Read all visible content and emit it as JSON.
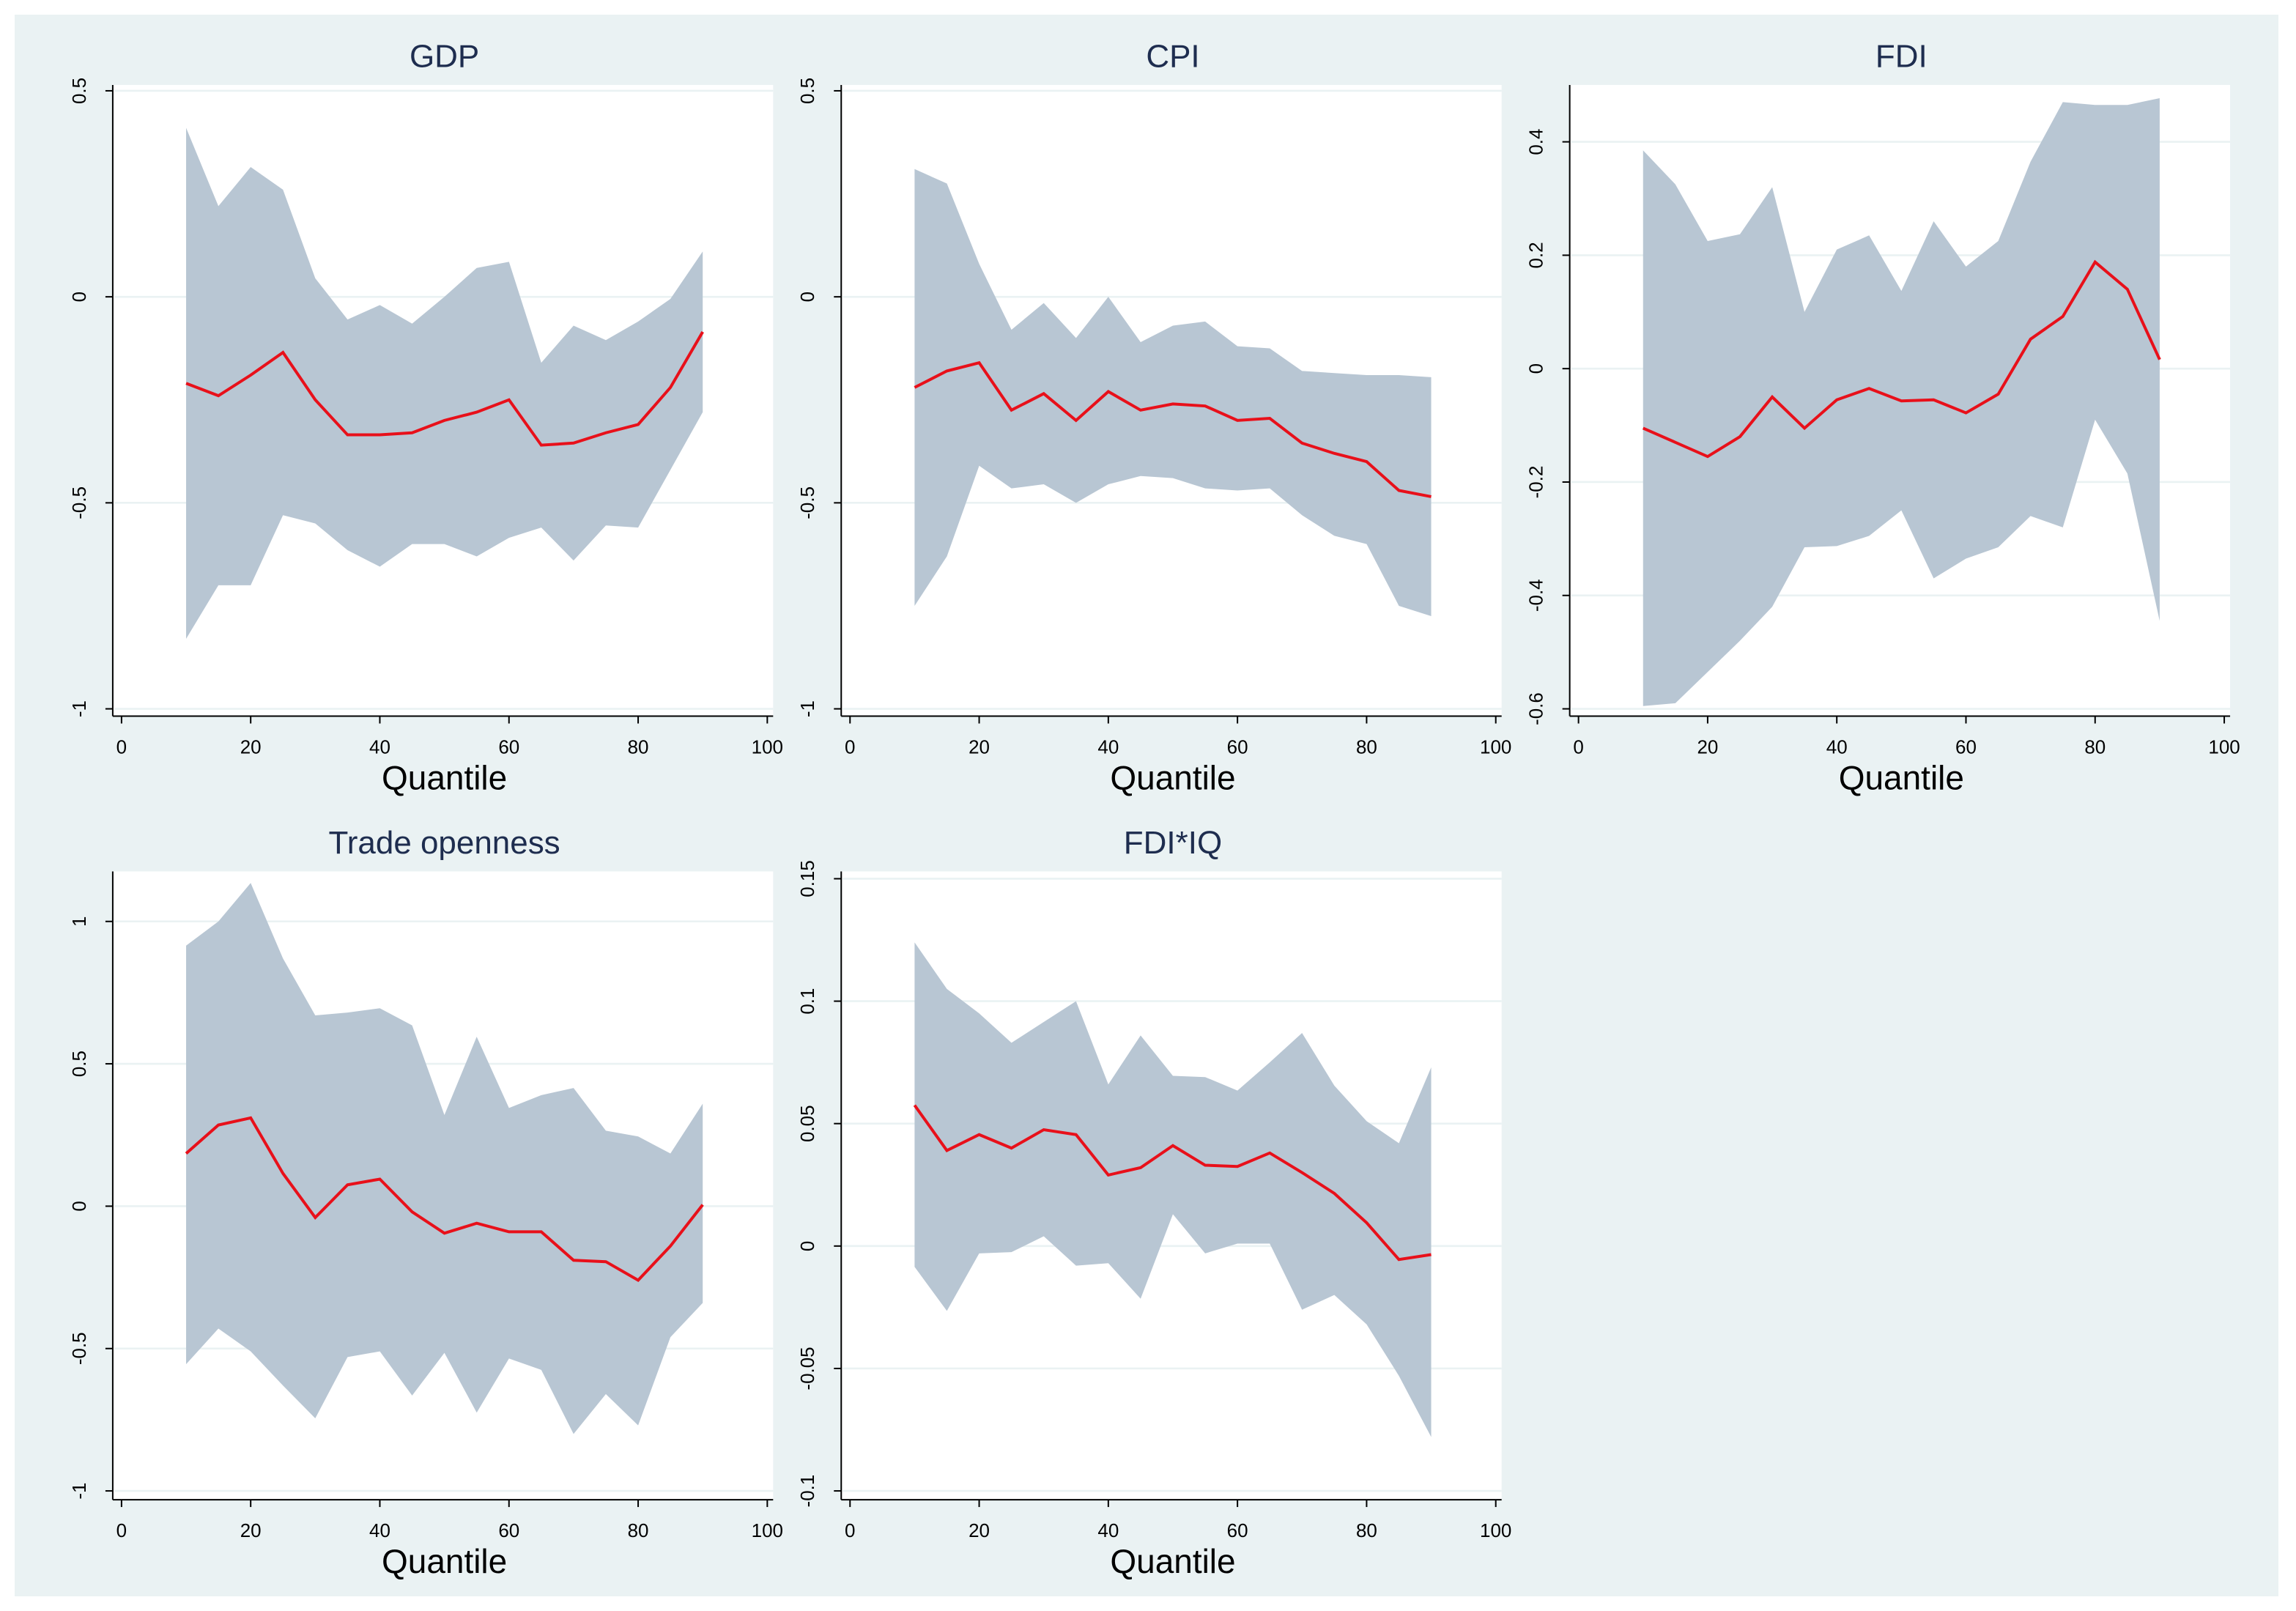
{
  "chart_data": [
    {
      "type": "line",
      "title": "GDP",
      "xlabel": "Quantile",
      "x": [
        10,
        15,
        20,
        25,
        30,
        35,
        40,
        45,
        50,
        55,
        60,
        65,
        70,
        75,
        80,
        85,
        90
      ],
      "values": [
        -0.21,
        -0.24,
        -0.19,
        -0.135,
        -0.25,
        -0.335,
        -0.335,
        -0.33,
        -0.3,
        -0.28,
        -0.25,
        -0.36,
        -0.355,
        -0.33,
        -0.31,
        -0.22,
        -0.085
      ],
      "color": "#e8101a",
      "band": {
        "color": "#b8c6d3",
        "upper": [
          0.41,
          0.22,
          0.315,
          0.26,
          0.045,
          -0.055,
          -0.02,
          -0.065,
          0,
          0.07,
          0.085,
          -0.16,
          -0.07,
          -0.105,
          -0.06,
          -0.005,
          0.11
        ],
        "lower": [
          -0.83,
          -0.7,
          -0.7,
          -0.53,
          -0.55,
          -0.615,
          -0.655,
          -0.6,
          -0.6,
          -0.63,
          -0.585,
          -0.56,
          -0.64,
          -0.555,
          -0.56,
          -0.42,
          -0.28
        ]
      },
      "xlim": [
        0,
        100
      ],
      "xticks": [
        0,
        20,
        40,
        60,
        80,
        100
      ],
      "ylim": [
        -1,
        0.5
      ],
      "yticks": [
        -1,
        -0.5,
        0,
        0.5
      ],
      "grid": true
    },
    {
      "type": "line",
      "title": "CPI",
      "xlabel": "Quantile",
      "x": [
        10,
        15,
        20,
        25,
        30,
        35,
        40,
        45,
        50,
        55,
        60,
        65,
        70,
        75,
        80,
        85,
        90
      ],
      "values": [
        -0.22,
        -0.18,
        -0.16,
        -0.275,
        -0.235,
        -0.3,
        -0.23,
        -0.275,
        -0.26,
        -0.265,
        -0.3,
        -0.295,
        -0.355,
        -0.38,
        -0.4,
        -0.47,
        -0.485
      ],
      "color": "#e8101a",
      "band": {
        "color": "#b8c6d3",
        "upper": [
          0.31,
          0.275,
          0.08,
          -0.08,
          -0.015,
          -0.1,
          0,
          -0.11,
          -0.07,
          -0.06,
          -0.12,
          -0.125,
          -0.18,
          -0.185,
          -0.19,
          -0.19,
          -0.195
        ],
        "lower": [
          -0.75,
          -0.63,
          -0.41,
          -0.465,
          -0.455,
          -0.5,
          -0.455,
          -0.435,
          -0.44,
          -0.465,
          -0.47,
          -0.465,
          -0.53,
          -0.58,
          -0.6,
          -0.75,
          -0.775
        ]
      },
      "xlim": [
        0,
        100
      ],
      "xticks": [
        0,
        20,
        40,
        60,
        80,
        100
      ],
      "ylim": [
        -1,
        0.5
      ],
      "yticks": [
        -1,
        -0.5,
        0,
        0.5
      ],
      "grid": true
    },
    {
      "type": "line",
      "title": "FDI",
      "xlabel": "Quantile",
      "x": [
        10,
        15,
        20,
        25,
        30,
        35,
        40,
        45,
        50,
        55,
        60,
        65,
        70,
        75,
        80,
        85,
        90
      ],
      "values": [
        -0.105,
        -0.13,
        -0.155,
        -0.12,
        -0.05,
        -0.105,
        -0.055,
        -0.035,
        -0.057,
        -0.055,
        -0.078,
        -0.045,
        0.052,
        0.092,
        0.188,
        0.14,
        0.016
      ],
      "color": "#e8101a",
      "band": {
        "color": "#b8c6d3",
        "upper": [
          0.385,
          0.325,
          0.225,
          0.237,
          0.32,
          0.1,
          0.21,
          0.235,
          0.137,
          0.26,
          0.18,
          0.225,
          0.365,
          0.47,
          0.465,
          0.465,
          0.477
        ],
        "lower": [
          -0.595,
          -0.59,
          -0.535,
          -0.48,
          -0.42,
          -0.315,
          -0.313,
          -0.295,
          -0.25,
          -0.37,
          -0.335,
          -0.315,
          -0.26,
          -0.28,
          -0.09,
          -0.185,
          -0.445
        ]
      },
      "xlim": [
        0,
        100
      ],
      "xticks": [
        0,
        20,
        40,
        60,
        80,
        100
      ],
      "ylim": [
        -0.6,
        0.49
      ],
      "yticks": [
        -0.6,
        -0.4,
        -0.2,
        0,
        0.2,
        0.4
      ],
      "grid": true
    },
    {
      "type": "line",
      "title": "Trade openness",
      "xlabel": "Quantile",
      "x": [
        10,
        15,
        20,
        25,
        30,
        35,
        40,
        45,
        50,
        55,
        60,
        65,
        70,
        75,
        80,
        85,
        90
      ],
      "values": [
        0.185,
        0.285,
        0.31,
        0.115,
        -0.04,
        0.075,
        0.095,
        -0.02,
        -0.095,
        -0.06,
        -0.09,
        -0.09,
        -0.19,
        -0.195,
        -0.26,
        -0.14,
        0.005
      ],
      "color": "#e8101a",
      "band": {
        "color": "#b8c6d3",
        "upper": [
          0.915,
          1.0,
          1.135,
          0.87,
          0.67,
          0.68,
          0.695,
          0.635,
          0.32,
          0.595,
          0.345,
          0.39,
          0.415,
          0.265,
          0.245,
          0.185,
          0.36
        ],
        "lower": [
          -0.555,
          -0.43,
          -0.51,
          -0.63,
          -0.745,
          -0.53,
          -0.51,
          -0.665,
          -0.515,
          -0.725,
          -0.535,
          -0.575,
          -0.8,
          -0.66,
          -0.77,
          -0.46,
          -0.34
        ]
      },
      "xlim": [
        0,
        100
      ],
      "xticks": [
        0,
        20,
        40,
        60,
        80,
        100
      ],
      "ylim": [
        -1,
        1.15
      ],
      "yticks": [
        -1,
        -0.5,
        0,
        0.5,
        1
      ],
      "grid": true
    },
    {
      "type": "line",
      "title": "FDI*IQ",
      "xlabel": "Quantile",
      "x": [
        10,
        15,
        20,
        25,
        30,
        35,
        40,
        45,
        50,
        55,
        60,
        65,
        70,
        75,
        80,
        85,
        90
      ],
      "values": [
        0.0575,
        0.039,
        0.0455,
        0.04,
        0.0475,
        0.0455,
        0.029,
        0.032,
        0.041,
        0.033,
        0.0325,
        0.038,
        0.03,
        0.0215,
        0.0095,
        -0.0055,
        -0.0035
      ],
      "color": "#e8101a",
      "band": {
        "color": "#b8c6d3",
        "upper": [
          0.124,
          0.105,
          0.095,
          0.083,
          0.0915,
          0.1,
          0.066,
          0.086,
          0.0695,
          0.069,
          0.0635,
          0.075,
          0.087,
          0.0655,
          0.051,
          0.042,
          0.073
        ],
        "lower": [
          -0.0085,
          -0.0265,
          -0.003,
          -0.0025,
          0.004,
          -0.008,
          -0.007,
          -0.0215,
          0.013,
          -0.003,
          0.001,
          0.001,
          -0.026,
          -0.02,
          -0.032,
          -0.053,
          -0.078
        ]
      },
      "xlim": [
        0,
        100
      ],
      "xticks": [
        0,
        20,
        40,
        60,
        80,
        100
      ],
      "ylim": [
        -0.1,
        0.15
      ],
      "yticks": [
        -0.1,
        -0.05,
        0,
        0.05,
        0.1,
        0.15
      ],
      "grid": true
    }
  ]
}
